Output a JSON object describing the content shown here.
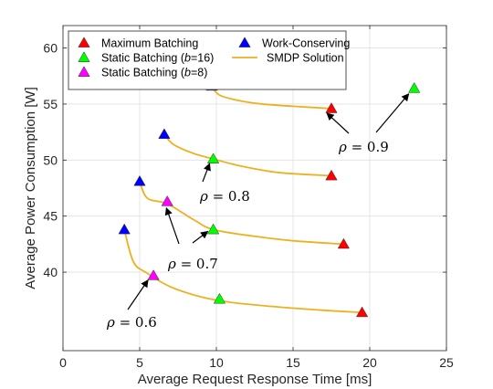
{
  "chart_data": {
    "type": "line",
    "xlabel": "Average Request Response Time [ms]",
    "ylabel": "Average Power Consumption [W]",
    "xlim": [
      0,
      25
    ],
    "ylim": [
      33,
      62
    ],
    "xticks": [
      0,
      5,
      10,
      15,
      20,
      25
    ],
    "yticks": [
      40,
      45,
      50,
      55,
      60
    ],
    "grid": true,
    "legend_position": "top-left",
    "legend": [
      {
        "label": "Maximum Batching",
        "marker": "triangle",
        "color": "#ff0000"
      },
      {
        "label": "Static Batching (",
        "italic": "b",
        "suffix": "=16)",
        "marker": "triangle",
        "color": "#00ff00"
      },
      {
        "label": "Static Batching (",
        "italic": "b",
        "suffix": "=8)",
        "marker": "triangle",
        "color": "#ff00ff"
      },
      {
        "label": "Work-Conserving",
        "marker": "triangle",
        "color": "#0000ff"
      },
      {
        "label": "SMDP Solution",
        "marker": "line",
        "color": "#edb120"
      }
    ],
    "groups": [
      {
        "rho_label": "0.6",
        "smdp_curve": [
          [
            4.0,
            43.8
          ],
          [
            4.6,
            40.9
          ],
          [
            5.5,
            39.9
          ],
          [
            7.0,
            38.7
          ],
          [
            9.0,
            37.8
          ],
          [
            11.0,
            37.3
          ],
          [
            14.0,
            36.9
          ],
          [
            17.0,
            36.6
          ],
          [
            19.5,
            36.4
          ]
        ],
        "work_conserving": [
          4.0,
          43.8
        ],
        "static_b8": [
          5.9,
          39.7
        ],
        "static_b16": [
          10.2,
          37.6
        ],
        "maximum": [
          19.5,
          36.4
        ]
      },
      {
        "rho_label": "0.7",
        "smdp_curve": [
          [
            5.0,
            48.1
          ],
          [
            5.5,
            46.6
          ],
          [
            6.8,
            46.1
          ],
          [
            8.5,
            44.7
          ],
          [
            9.8,
            43.8
          ],
          [
            12.5,
            43.2
          ],
          [
            15.0,
            42.8
          ],
          [
            18.3,
            42.5
          ]
        ],
        "work_conserving": [
          5.0,
          48.1
        ],
        "static_b8": [
          6.8,
          46.3
        ],
        "static_b16": [
          9.8,
          43.8
        ],
        "maximum": [
          18.3,
          42.5
        ]
      },
      {
        "rho_label": "0.8",
        "smdp_curve": [
          [
            6.6,
            52.3
          ],
          [
            7.2,
            51.4
          ],
          [
            8.5,
            50.6
          ],
          [
            9.8,
            50.1
          ],
          [
            11.5,
            49.5
          ],
          [
            14.0,
            48.9
          ],
          [
            17.5,
            48.6
          ]
        ],
        "work_conserving": [
          6.6,
          52.3
        ],
        "static_b16": [
          9.8,
          50.1
        ],
        "maximum": [
          17.5,
          48.6
        ]
      },
      {
        "rho_label": "0.9",
        "smdp_curve": [
          [
            9.7,
            56.6
          ],
          [
            10.2,
            55.8
          ],
          [
            11.5,
            55.3
          ],
          [
            13.0,
            55.0
          ],
          [
            15.0,
            54.8
          ],
          [
            17.5,
            54.6
          ]
        ],
        "work_conserving": [
          9.7,
          56.6
        ],
        "static_b16": [
          22.9,
          56.4
        ],
        "maximum": [
          17.5,
          54.6
        ]
      }
    ],
    "annotations": [
      {
        "text": "0.6"
      },
      {
        "text": "0.7"
      },
      {
        "text": "0.8"
      },
      {
        "text": "0.9"
      }
    ]
  }
}
